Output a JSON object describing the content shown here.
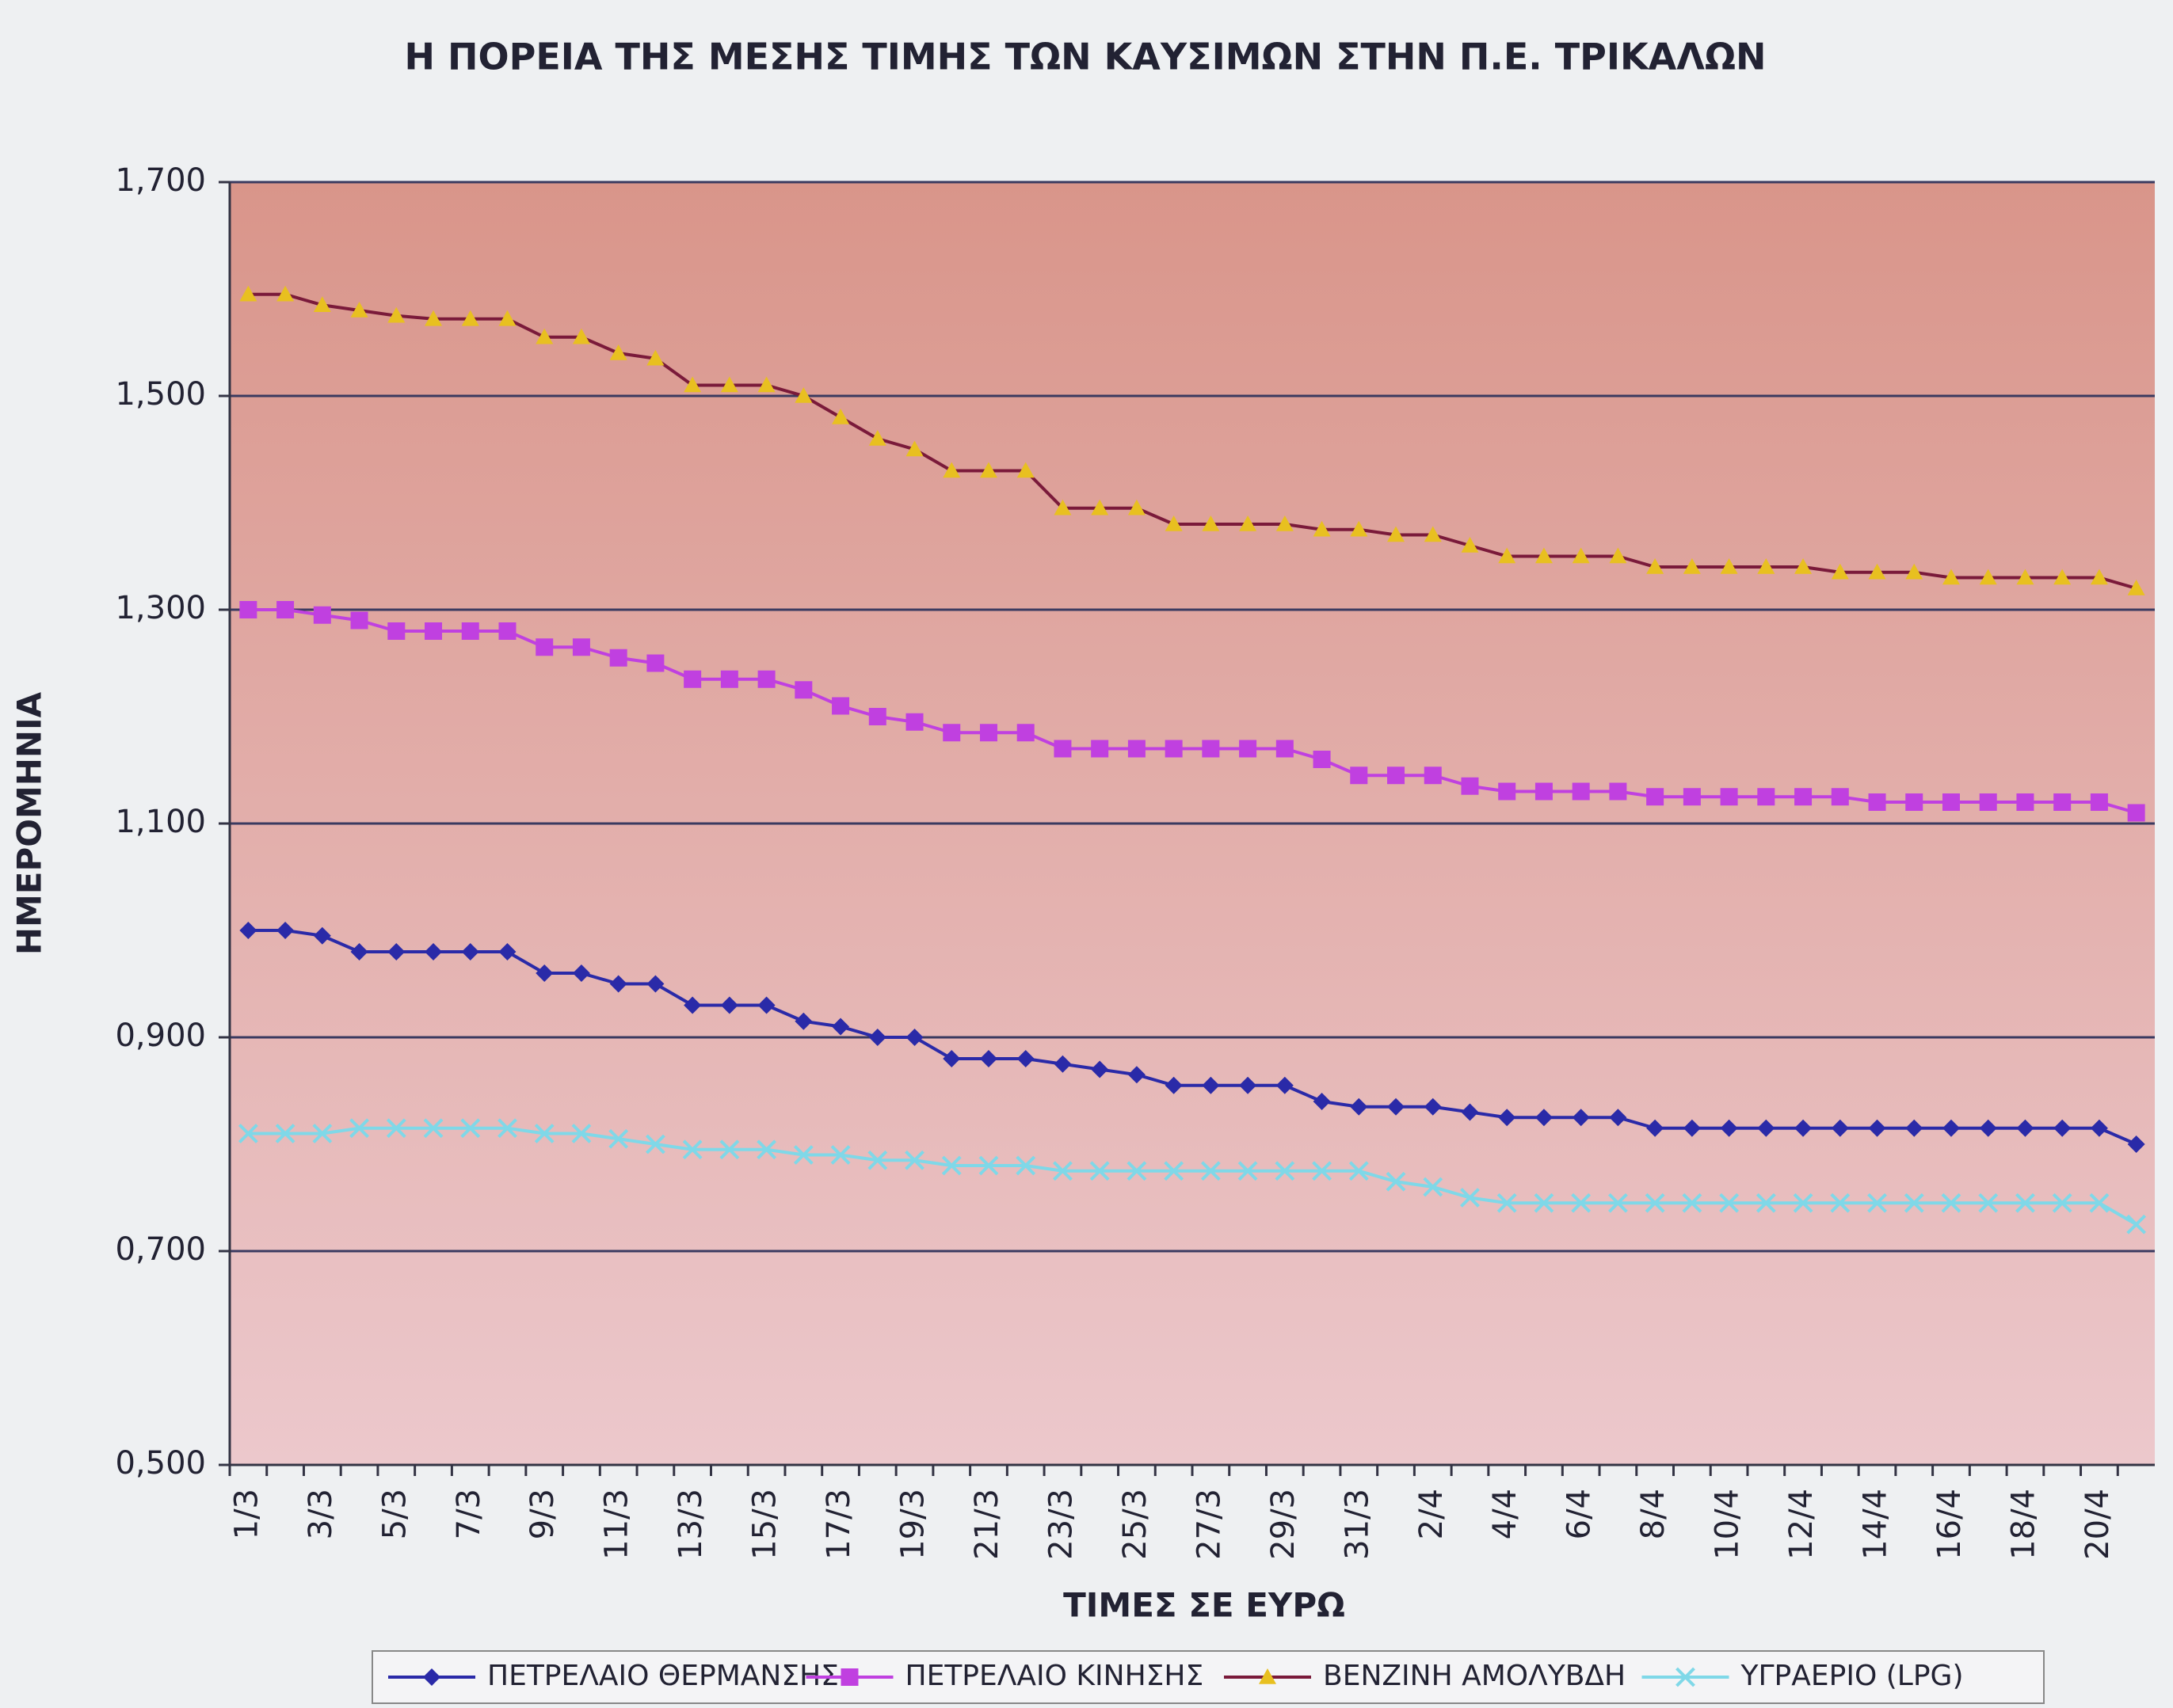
{
  "chart_data": {
    "type": "line",
    "title": "Η ΠΟΡΕΙΑ ΤΗΣ ΜΕΣΗΣ ΤΙΜΗΣ ΤΩΝ ΚΑΥΣΙΜΩΝ ΣΤΗΝ Π.Ε. ΤΡΙΚΑΛΩΝ",
    "x_label": "ΤΙΜΕΣ ΣΕ ΕΥΡΩ",
    "y_label": "ΗΜΕΡΟΜΗΝΙΑ",
    "categories": [
      "1/3",
      null,
      "3/3",
      null,
      "5/3",
      null,
      "7/3",
      null,
      "9/3",
      null,
      "11/3",
      null,
      "13/3",
      null,
      "15/3",
      null,
      "17/3",
      null,
      "19/3",
      null,
      "21/3",
      null,
      "23/3",
      null,
      "25/3",
      null,
      "27/3",
      null,
      "29/3",
      null,
      "31/3",
      null,
      "2/4",
      null,
      "4/4",
      null,
      "6/4",
      null,
      "8/4",
      null,
      "10/4",
      null,
      "12/4",
      null,
      "14/4",
      null,
      "16/4",
      null,
      "18/4",
      null,
      "20/4",
      null
    ],
    "ylim": [
      0.5,
      1.7
    ],
    "yticks": [
      {
        "value": 0.5,
        "label": "0,500"
      },
      {
        "value": 0.7,
        "label": "0,700"
      },
      {
        "value": 0.9,
        "label": "0,900"
      },
      {
        "value": 1.1,
        "label": "1,100"
      },
      {
        "value": 1.3,
        "label": "1,300"
      },
      {
        "value": 1.5,
        "label": "1,500"
      },
      {
        "value": 1.7,
        "label": "1,700"
      }
    ],
    "grid": true,
    "legend": "bottom",
    "series": [
      {
        "name": "ΠΕΤΡΕΛΑΙΟ ΘΕΡΜΑΝΣΗΣ",
        "color": "#2a2aa8",
        "marker": "diamond",
        "marker_color": "#2a2aa8",
        "values": [
          1.0,
          1.0,
          0.995,
          0.98,
          0.98,
          0.98,
          0.98,
          0.98,
          0.96,
          0.96,
          0.95,
          0.95,
          0.93,
          0.93,
          0.93,
          0.915,
          0.91,
          0.9,
          0.9,
          0.88,
          0.88,
          0.88,
          0.875,
          0.87,
          0.865,
          0.855,
          0.855,
          0.855,
          0.855,
          0.84,
          0.835,
          0.835,
          0.835,
          0.83,
          0.825,
          0.825,
          0.825,
          0.825,
          0.815,
          0.815,
          0.815,
          0.815,
          0.815,
          0.815,
          0.815,
          0.815,
          0.815,
          0.815,
          0.815,
          0.815,
          0.815,
          0.8
        ]
      },
      {
        "name": "ΠΕΤΡΕΛΑΙΟ ΚΙΝΗΣΗΣ",
        "color": "#c040e0",
        "marker": "square",
        "marker_color": "#c040e0",
        "values": [
          1.3,
          1.3,
          1.295,
          1.29,
          1.28,
          1.28,
          1.28,
          1.28,
          1.265,
          1.265,
          1.255,
          1.25,
          1.235,
          1.235,
          1.235,
          1.225,
          1.21,
          1.2,
          1.195,
          1.185,
          1.185,
          1.185,
          1.17,
          1.17,
          1.17,
          1.17,
          1.17,
          1.17,
          1.17,
          1.16,
          1.145,
          1.145,
          1.145,
          1.135,
          1.13,
          1.13,
          1.13,
          1.13,
          1.125,
          1.125,
          1.125,
          1.125,
          1.125,
          1.125,
          1.12,
          1.12,
          1.12,
          1.12,
          1.12,
          1.12,
          1.12,
          1.11
        ]
      },
      {
        "name": "ΒΕΝΖΙΝΗ ΑΜΟΛΥΒΔΗ",
        "color": "#7a1a3a",
        "marker": "triangle",
        "marker_color": "#e8c020",
        "values": [
          1.595,
          1.595,
          1.585,
          1.58,
          1.575,
          1.572,
          1.572,
          1.572,
          1.555,
          1.555,
          1.54,
          1.535,
          1.51,
          1.51,
          1.51,
          1.5,
          1.48,
          1.46,
          1.45,
          1.43,
          1.43,
          1.43,
          1.395,
          1.395,
          1.395,
          1.38,
          1.38,
          1.38,
          1.38,
          1.375,
          1.375,
          1.37,
          1.37,
          1.36,
          1.35,
          1.35,
          1.35,
          1.35,
          1.34,
          1.34,
          1.34,
          1.34,
          1.34,
          1.335,
          1.335,
          1.335,
          1.33,
          1.33,
          1.33,
          1.33,
          1.33,
          1.32
        ]
      },
      {
        "name": "ΥΓΡΑΕΡΙΟ (LPG)",
        "color": "#7fd8e8",
        "marker": "cross",
        "marker_color": "#7fd8e8",
        "values": [
          0.81,
          0.81,
          0.81,
          0.815,
          0.815,
          0.815,
          0.815,
          0.815,
          0.81,
          0.81,
          0.805,
          0.8,
          0.795,
          0.795,
          0.795,
          0.79,
          0.79,
          0.785,
          0.785,
          0.78,
          0.78,
          0.78,
          0.775,
          0.775,
          0.775,
          0.775,
          0.775,
          0.775,
          0.775,
          0.775,
          0.775,
          0.765,
          0.76,
          0.75,
          0.745,
          0.745,
          0.745,
          0.745,
          0.745,
          0.745,
          0.745,
          0.745,
          0.745,
          0.745,
          0.745,
          0.745,
          0.745,
          0.745,
          0.745,
          0.745,
          0.745,
          0.725
        ]
      }
    ]
  }
}
